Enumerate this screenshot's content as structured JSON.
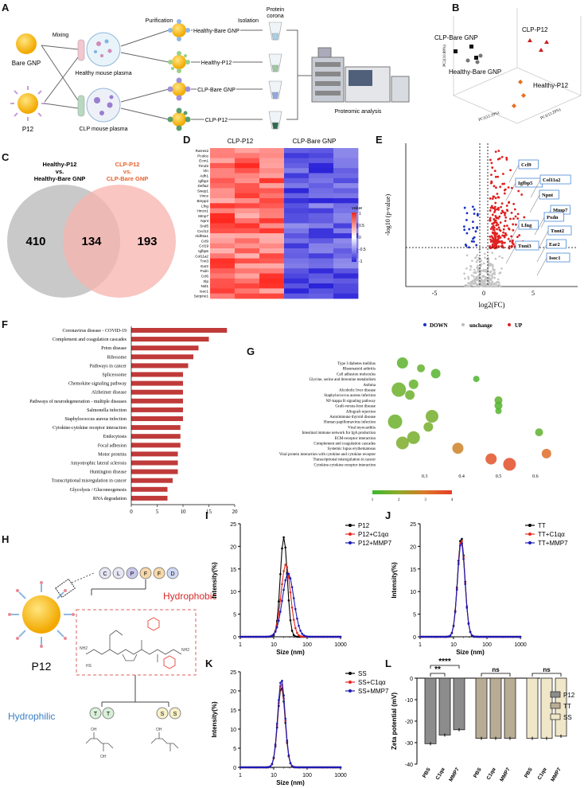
{
  "panel_labels": [
    "A",
    "B",
    "C",
    "D",
    "E",
    "F",
    "G",
    "H",
    "I",
    "J",
    "K",
    "L"
  ],
  "panel_a": {
    "bare_gnp": "Bare GNP",
    "p12": "P12",
    "mixing": "Mixing",
    "purification": "Purification",
    "isolation": "Isolation",
    "protein_corona_1": "Protein",
    "protein_corona_2": "corona",
    "healthy_plasma": "Healthy mouse plasma",
    "clp_plasma": "CLP mouse plasma",
    "healthy_bare": "Healthy-Bare GNP",
    "healthy_p12": "Healthy-P12",
    "clp_bare": "CLP-Bare GNP",
    "clp_p12": "CLP-P12",
    "proteomic": "Proteomic analysis"
  },
  "panel_b": {
    "clp_bare": "CLP-Bare GNP",
    "clp_p12": "CLP-P12",
    "healthy_bare": "Healthy-Bare GNP",
    "healthy_p12": "Healthy-P12",
    "pc1_a": "PC1(12.29%)",
    "pc1_b": "PC1(12.29%)",
    "pc2": "PC2(10.88%)"
  },
  "panel_c": {
    "left_title_1": "Healthy-P12",
    "left_title_2": "vs.",
    "left_title_3": "Healthy-Bare GNP",
    "right_title_1": "CLP-P12",
    "right_title_2": "vs.",
    "right_title_3": "CLP-Bare GNP",
    "left_only": "410",
    "overlap": "134",
    "right_only": "193",
    "colors": {
      "left": "#c9c9c9",
      "right": "#f7b3ad",
      "right_title": "#e8612c"
    }
  },
  "panel_d": {
    "col1": "CLP-P12",
    "col2": "CLP-Bare GNP",
    "genes": [
      "Rarres2",
      "Pcolce",
      "Ecm1",
      "Timd2",
      "Vtn",
      "Adh1",
      "Igfbp2",
      "Defta2",
      "Swep1",
      "Vwce",
      "Bmpp2",
      "Lfng",
      "Hmcn1",
      "Mmp7",
      "Npnt",
      "Snd5",
      "Cxcl12",
      "Aldh5a1",
      "Ccl9",
      "Ccl19",
      "Igfbp5",
      "Col11a2",
      "Tnn3",
      "Ear2",
      "Pxdn",
      "Ccl6",
      "Slp",
      "Nid1",
      "Isoc1",
      "Serpine1"
    ],
    "legend_title": "value",
    "legend_ticks": [
      "1",
      "0.5",
      "0",
      "-0.5",
      "-1"
    ]
  },
  "panel_e": {
    "ylabel": "-log10 (p-value)",
    "xlabel": "log2(FC)",
    "xticks": [
      "-5",
      "0",
      "5"
    ],
    "labels": [
      "Ccl9",
      "Igfbp5",
      "Col11a2",
      "Npnt",
      "Mmp7",
      "Pxdn",
      "Tnnt2",
      "Lfng",
      "Ear2",
      "Tnni3",
      "Isoc1"
    ],
    "legend": [
      "DOWN",
      "unchange",
      "UP"
    ]
  },
  "panel_f": {
    "terms": [
      "Coronavirus disease - COVID-19",
      "Complement and coagulation cascades",
      "Prion disease",
      "Ribosome",
      "Pathways in cancer",
      "Spliceosome",
      "Chemokine signaling pathway",
      "Alzheimer disease",
      "Pathways of neurodegeneration - multiple diseases",
      "Salmonella infection",
      "Staphylococcus aureus infection",
      "Cytokine-cytokine receptor interaction",
      "Endocytosis",
      "Focal adhesion",
      "Motor proteins",
      "Amyotrophic lateral sclerosis",
      "Huntington disease",
      "Transcriptional misregulation in cancer",
      "Glycolysis / Gluconeogenesis",
      "RNA degradation"
    ],
    "values": [
      18.5,
      15,
      13,
      12,
      11,
      10,
      10,
      10,
      10,
      10,
      10,
      9.5,
      9.5,
      9.5,
      9,
      9,
      9,
      8,
      7,
      7
    ],
    "xticks": [
      "0",
      "5",
      "10",
      "15",
      "20"
    ],
    "xmax": 20,
    "bar_color": "#c03a3a"
  },
  "panel_g": {
    "terms": [
      "Type I diabetes mellitus",
      "Rheumatoid arthritis",
      "Cell adhesion molecules",
      "Glycine, serine and threonine metabolism",
      "Asthma",
      "Alcoholic liver disease",
      "Staphylococcus aureus infection",
      "NF-kappa B signaling pathway",
      "Graft-versus-host disease",
      "Allograft rejection",
      "Autoimmune thyroid disease",
      "Human papillomavirus infection",
      "Viral myocarditis",
      "Intestinal immune network for IgA production",
      "ECM-receptor interaction",
      "Complement and coagulation cascades",
      "Systemic lupus erythematosus",
      "Viral protein interaction with cytokine and cytokine receptor",
      "Transcriptional misregulation in cancer",
      "Cytokine-cytokine receptor interaction"
    ],
    "x": [
      0.24,
      0.29,
      0.33,
      0.44,
      0.27,
      0.23,
      0.26,
      0.5,
      0.5,
      0.5,
      0.32,
      0.22,
      0.31,
      0.61,
      0.27,
      0.24,
      0.39,
      0.63,
      0.48,
      0.53
    ],
    "size": [
      7,
      5,
      6,
      4,
      6,
      9,
      6,
      5,
      5,
      4,
      8,
      9,
      6,
      5,
      8,
      8,
      7,
      6,
      7,
      8
    ],
    "pval": [
      1.4,
      1.5,
      1.3,
      1.2,
      1.5,
      1.6,
      1.6,
      1.4,
      1.3,
      1.3,
      1.7,
      1.6,
      1.7,
      1.4,
      1.7,
      1.8,
      2.8,
      3.2,
      3.6,
      3.7
    ],
    "xticks": [
      "0.3",
      "0.4",
      "0.5",
      "0.6"
    ],
    "xmin": 0.18,
    "xmax": 0.68,
    "legend_ticks": [
      "1",
      "2",
      "3",
      "4"
    ]
  },
  "panel_h": {
    "p12": "P12",
    "residues": [
      "C",
      "L",
      "P",
      "F",
      "F",
      "D"
    ],
    "hydrophobic": "Hydrophobic",
    "hydrophilic": "Hydrophilic",
    "tt": [
      "T",
      "T"
    ],
    "ss": [
      "S",
      "S"
    ],
    "groups": [
      "HS",
      "NH2",
      "NH2",
      "OH",
      "OH",
      "OH"
    ]
  },
  "chart_data": [
    {
      "type": "line",
      "panel": "I",
      "xlabel": "Size (nm)",
      "ylabel": "Intensity(%)",
      "xscale": "log",
      "xlim": [
        1,
        1000
      ],
      "ylim": [
        0,
        25
      ],
      "yticks": [
        "0",
        "5",
        "10",
        "15",
        "20",
        "25"
      ],
      "xticks": [
        "1",
        "10",
        "100",
        "1000"
      ],
      "series": [
        {
          "name": "P12",
          "color": "#000000",
          "mu": 20,
          "sigma": 0.105,
          "peak": 22
        },
        {
          "name": "P12+C1qα",
          "color": "#e8271e",
          "mu": 23,
          "sigma": 0.14,
          "peak": 16
        },
        {
          "name": "P12+MMP7",
          "color": "#1a1ab8",
          "mu": 27,
          "sigma": 0.17,
          "peak": 14
        }
      ]
    },
    {
      "type": "line",
      "panel": "J",
      "xlabel": "Size (nm)",
      "ylabel": "Intensity(%)",
      "xscale": "log",
      "xlim": [
        1,
        1000
      ],
      "ylim": [
        0,
        25
      ],
      "yticks": [
        "0",
        "5",
        "10",
        "15",
        "20",
        "25"
      ],
      "xticks": [
        "1",
        "10",
        "100",
        "1000"
      ],
      "series": [
        {
          "name": "TT",
          "color": "#000000",
          "mu": 17,
          "sigma": 0.11,
          "peak": 22
        },
        {
          "name": "TT+C1qα",
          "color": "#e8271e",
          "mu": 17,
          "sigma": 0.11,
          "peak": 21.5
        },
        {
          "name": "TT+MMP7",
          "color": "#1a1ab8",
          "mu": 17,
          "sigma": 0.11,
          "peak": 21
        }
      ]
    },
    {
      "type": "line",
      "panel": "K",
      "xlabel": "Size (nm)",
      "ylabel": "Intensity(%)",
      "xscale": "log",
      "xlim": [
        1,
        1000
      ],
      "ylim": [
        0,
        25
      ],
      "yticks": [
        "0",
        "5",
        "10",
        "15",
        "20",
        "25"
      ],
      "xticks": [
        "1",
        "10",
        "100",
        "1000"
      ],
      "series": [
        {
          "name": "SS",
          "color": "#000000",
          "mu": 17,
          "sigma": 0.11,
          "peak": 21
        },
        {
          "name": "SS+C1qα",
          "color": "#e8271e",
          "mu": 17,
          "sigma": 0.11,
          "peak": 22
        },
        {
          "name": "SS+MMP7",
          "color": "#1a1ab8",
          "mu": 17,
          "sigma": 0.11,
          "peak": 23
        }
      ]
    },
    {
      "type": "bar",
      "panel": "L",
      "ylabel": "Zeta potential (mV)",
      "ylim": [
        -40,
        0
      ],
      "yticks": [
        "0",
        "-10",
        "-20",
        "-30",
        "-40"
      ],
      "categories": [
        "PBS",
        "C1qα",
        "MMP7"
      ],
      "series": [
        {
          "name": "P12",
          "color": "#8c8c8c",
          "values": [
            -30.5,
            -26.5,
            -24
          ]
        },
        {
          "name": "TT",
          "color": "#b8ac94",
          "values": [
            -28,
            -28,
            -28
          ]
        },
        {
          "name": "SS",
          "color": "#f0e6c8",
          "values": [
            -28,
            -28,
            -27
          ]
        }
      ],
      "annotations": [
        "****",
        "**",
        "ns",
        "ns"
      ]
    }
  ]
}
